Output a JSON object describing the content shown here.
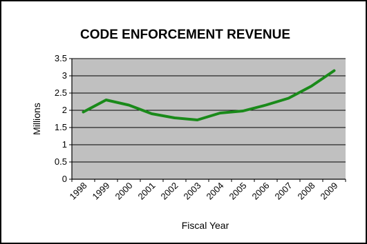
{
  "chart_data": {
    "type": "line",
    "title": "CODE ENFORCEMENT REVENUE",
    "xlabel": "Fiscal Year",
    "ylabel": "Millions",
    "categories": [
      "1998",
      "1999",
      "2000",
      "2001",
      "2002",
      "2003",
      "2004",
      "2005",
      "2006",
      "2007",
      "2008",
      "2009"
    ],
    "series": [
      {
        "values": [
          1.95,
          2.3,
          2.15,
          1.9,
          1.78,
          1.72,
          1.92,
          1.98,
          2.15,
          2.35,
          2.7,
          3.15
        ]
      }
    ],
    "ylim": [
      0,
      3.5
    ],
    "yticks": [
      "0",
      "0.5",
      "1",
      "1.5",
      "2",
      "2.5",
      "3",
      "3.5"
    ],
    "grid": "horizontal",
    "legend": "none",
    "colors": {
      "line": "#1a8a1a",
      "plot_background": "#c0c0c0",
      "gridline": "#000000"
    }
  }
}
